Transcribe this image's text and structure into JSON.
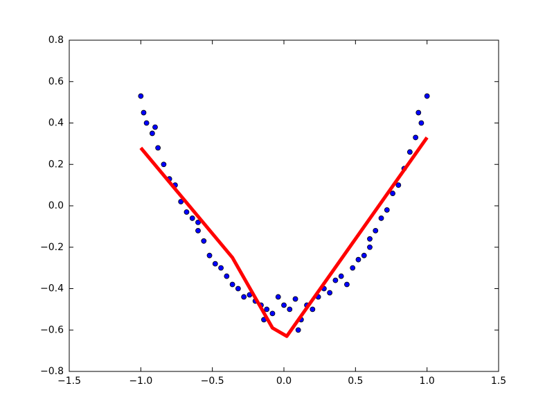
{
  "chart_data": {
    "type": "scatter",
    "xlim": [
      -1.5,
      1.5
    ],
    "ylim": [
      -0.8,
      0.8
    ],
    "xticks": [
      {
        "value": -1.5,
        "label": "−1.5"
      },
      {
        "value": -1.0,
        "label": "−1.0"
      },
      {
        "value": -0.5,
        "label": "−0.5"
      },
      {
        "value": 0.0,
        "label": "0.0"
      },
      {
        "value": 0.5,
        "label": "0.5"
      },
      {
        "value": 1.0,
        "label": "1.0"
      },
      {
        "value": 1.5,
        "label": "1.5"
      }
    ],
    "yticks": [
      {
        "value": -0.8,
        "label": "−0.8"
      },
      {
        "value": -0.6,
        "label": "−0.6"
      },
      {
        "value": -0.4,
        "label": "−0.4"
      },
      {
        "value": -0.2,
        "label": "−0.2"
      },
      {
        "value": 0.0,
        "label": "0.0"
      },
      {
        "value": 0.2,
        "label": "0.2"
      },
      {
        "value": 0.4,
        "label": "0.4"
      },
      {
        "value": 0.6,
        "label": "0.6"
      },
      {
        "value": 0.8,
        "label": "0.8"
      }
    ],
    "series": [
      {
        "type": "scatter",
        "color": "#0000ff",
        "x": [
          -1.0,
          -0.98,
          -0.96,
          -0.92,
          -0.9,
          -0.88,
          -0.84,
          -0.8,
          -0.76,
          -0.72,
          -0.68,
          -0.64,
          -0.6,
          -0.6,
          -0.56,
          -0.52,
          -0.48,
          -0.44,
          -0.4,
          -0.36,
          -0.32,
          -0.28,
          -0.24,
          -0.2,
          -0.16,
          -0.14,
          -0.12,
          -0.08,
          -0.04,
          0.0,
          0.04,
          0.08,
          0.1,
          0.12,
          0.16,
          0.2,
          0.24,
          0.28,
          0.32,
          0.36,
          0.4,
          0.44,
          0.48,
          0.52,
          0.56,
          0.6,
          0.6,
          0.64,
          0.68,
          0.72,
          0.76,
          0.8,
          0.84,
          0.88,
          0.92,
          0.94,
          0.96,
          1.0
        ],
        "values": [
          0.53,
          0.45,
          0.4,
          0.35,
          0.38,
          0.28,
          0.2,
          0.13,
          0.1,
          0.02,
          -0.03,
          -0.06,
          -0.12,
          -0.08,
          -0.17,
          -0.24,
          -0.28,
          -0.3,
          -0.34,
          -0.38,
          -0.4,
          -0.44,
          -0.43,
          -0.46,
          -0.48,
          -0.55,
          -0.5,
          -0.52,
          -0.44,
          -0.48,
          -0.5,
          -0.45,
          -0.6,
          -0.55,
          -0.48,
          -0.5,
          -0.44,
          -0.4,
          -0.42,
          -0.36,
          -0.34,
          -0.38,
          -0.3,
          -0.26,
          -0.24,
          -0.16,
          -0.2,
          -0.12,
          -0.06,
          -0.02,
          0.06,
          0.1,
          0.18,
          0.26,
          0.33,
          0.45,
          0.4,
          0.53
        ]
      },
      {
        "type": "line",
        "color": "#ff0000",
        "x": [
          -1.0,
          -0.36,
          -0.08,
          0.02,
          1.0
        ],
        "values": [
          0.28,
          -0.25,
          -0.59,
          -0.63,
          0.33
        ]
      }
    ]
  }
}
